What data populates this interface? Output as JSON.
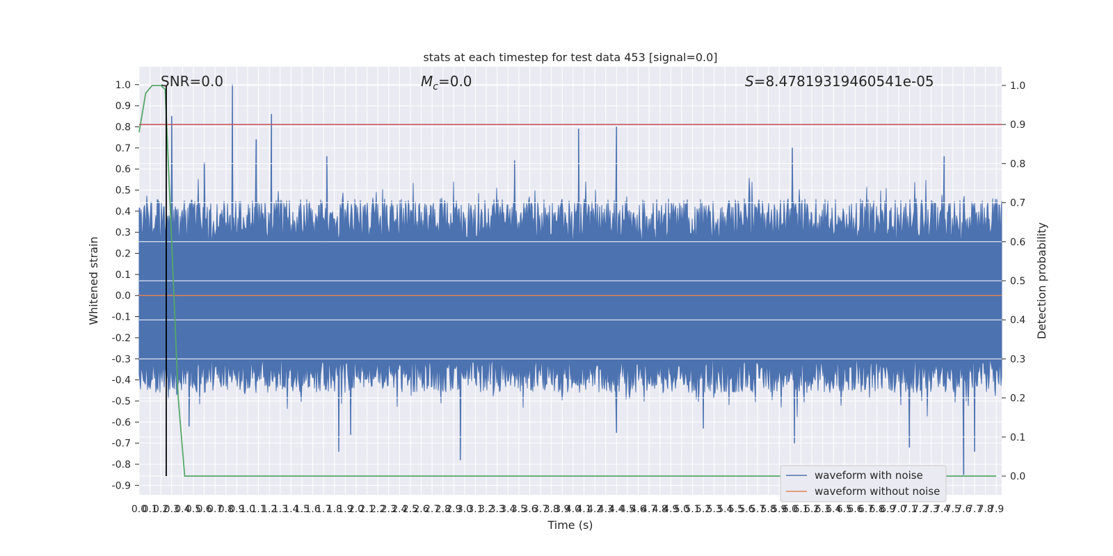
{
  "chart_data": {
    "type": "line",
    "title": "stats at each timestep for test data 453 [signal=0.0]",
    "xlabel": "Time (s)",
    "ylabel": "Whitened strain",
    "y2label": "Detection probability",
    "xlim": [
      0.0,
      7.95
    ],
    "ylim": [
      -0.945,
      1.085
    ],
    "y2lim": [
      -0.048,
      1.048
    ],
    "xticks": [
      "0.0",
      "0.1",
      "0.2",
      "0.3",
      "0.4",
      "0.5",
      "0.6",
      "0.7",
      "0.8",
      "0.9",
      "1.0",
      "1.1",
      "1.2",
      "1.3",
      "1.4",
      "1.5",
      "1.6",
      "1.7",
      "1.8",
      "1.9",
      "2.0",
      "2.1",
      "2.2",
      "2.3",
      "2.4",
      "2.5",
      "2.6",
      "2.7",
      "2.8",
      "2.9",
      "3.0",
      "3.1",
      "3.2",
      "3.3",
      "3.4",
      "3.5",
      "3.6",
      "3.7",
      "3.8",
      "3.9",
      "4.0",
      "4.1",
      "4.2",
      "4.3",
      "4.4",
      "4.5",
      "4.6",
      "4.7",
      "4.8",
      "4.9",
      "5.0",
      "5.1",
      "5.2",
      "5.3",
      "5.4",
      "5.5",
      "5.6",
      "5.7",
      "5.8",
      "5.9",
      "6.0",
      "6.1",
      "6.2",
      "6.3",
      "6.4",
      "6.5",
      "6.6",
      "6.7",
      "6.8",
      "6.9",
      "7.0",
      "7.1",
      "7.2",
      "7.3",
      "7.4",
      "7.5",
      "7.6",
      "7.7",
      "7.8",
      "7.9"
    ],
    "yticks": [
      "1.0",
      "0.9",
      "0.8",
      "0.7",
      "0.6",
      "0.5",
      "0.4",
      "0.3",
      "0.2",
      "0.1",
      "0.0",
      "-0.1",
      "-0.2",
      "-0.3",
      "-0.4",
      "-0.5",
      "-0.6",
      "-0.7",
      "-0.8",
      "-0.9"
    ],
    "y2ticks": [
      "1.0",
      "0.9",
      "0.8",
      "0.7",
      "0.6",
      "0.5",
      "0.4",
      "0.3",
      "0.2",
      "0.1",
      "0.0"
    ],
    "grid": true,
    "legend_position": "lower-right",
    "series": [
      {
        "name": "waveform with noise",
        "axis": "left",
        "color": "#4c72b0",
        "kind": "noise-envelope",
        "envelope_upper_typical": 0.4,
        "envelope_lower_typical": -0.4,
        "dense_band": [
          -0.3,
          0.26
        ],
        "spikes": [
          {
            "x": 0.86,
            "y": 1.0
          },
          {
            "x": 1.22,
            "y": 0.86
          },
          {
            "x": 1.08,
            "y": 0.74
          },
          {
            "x": 4.05,
            "y": 0.79
          },
          {
            "x": 4.4,
            "y": 0.8
          },
          {
            "x": 0.3,
            "y": 0.85
          },
          {
            "x": 6.02,
            "y": 0.7
          },
          {
            "x": 3.46,
            "y": 0.64
          },
          {
            "x": 7.42,
            "y": 0.66
          },
          {
            "x": 0.6,
            "y": 0.63
          },
          {
            "x": 1.73,
            "y": 0.66
          },
          {
            "x": 2.96,
            "y": -0.78
          },
          {
            "x": 1.84,
            "y": -0.74
          },
          {
            "x": 1.95,
            "y": -0.66
          },
          {
            "x": 7.7,
            "y": -0.74
          },
          {
            "x": 6.04,
            "y": -0.7
          },
          {
            "x": 7.1,
            "y": -0.72
          },
          {
            "x": 7.6,
            "y": -0.85
          },
          {
            "x": 4.4,
            "y": -0.65
          },
          {
            "x": 0.46,
            "y": -0.62
          },
          {
            "x": 5.2,
            "y": -0.63
          }
        ]
      },
      {
        "name": "waveform without noise",
        "axis": "left",
        "color": "#dd8452",
        "x": [
          0.0,
          7.95
        ],
        "y": [
          0.0,
          0.0
        ]
      },
      {
        "name": "detection probability",
        "axis": "right",
        "color": "#55a868",
        "x": [
          0.0,
          0.06,
          0.12,
          0.2,
          0.24,
          0.3,
          0.36,
          0.42,
          7.9
        ],
        "y": [
          0.88,
          0.98,
          1.0,
          1.0,
          0.99,
          0.6,
          0.2,
          0.0,
          0.0
        ]
      },
      {
        "name": "threshold",
        "axis": "right",
        "color": "#c44e52",
        "x": [
          0.0,
          7.95
        ],
        "y": [
          0.9,
          0.9
        ]
      },
      {
        "name": "trigger time",
        "axis": "right",
        "color": "#000000",
        "kind": "vline",
        "x": 0.25,
        "y": [
          0.0,
          1.0
        ]
      }
    ],
    "annotations": {
      "snr": "SNR=0.0",
      "mc_symbol": "M",
      "mc_sub": "c",
      "mc_value": "=0.0",
      "s_symbol": "S",
      "s_value": "=8.47819319460541e-05"
    }
  },
  "legend": {
    "item1": "waveform with noise",
    "item2": "waveform without noise"
  }
}
